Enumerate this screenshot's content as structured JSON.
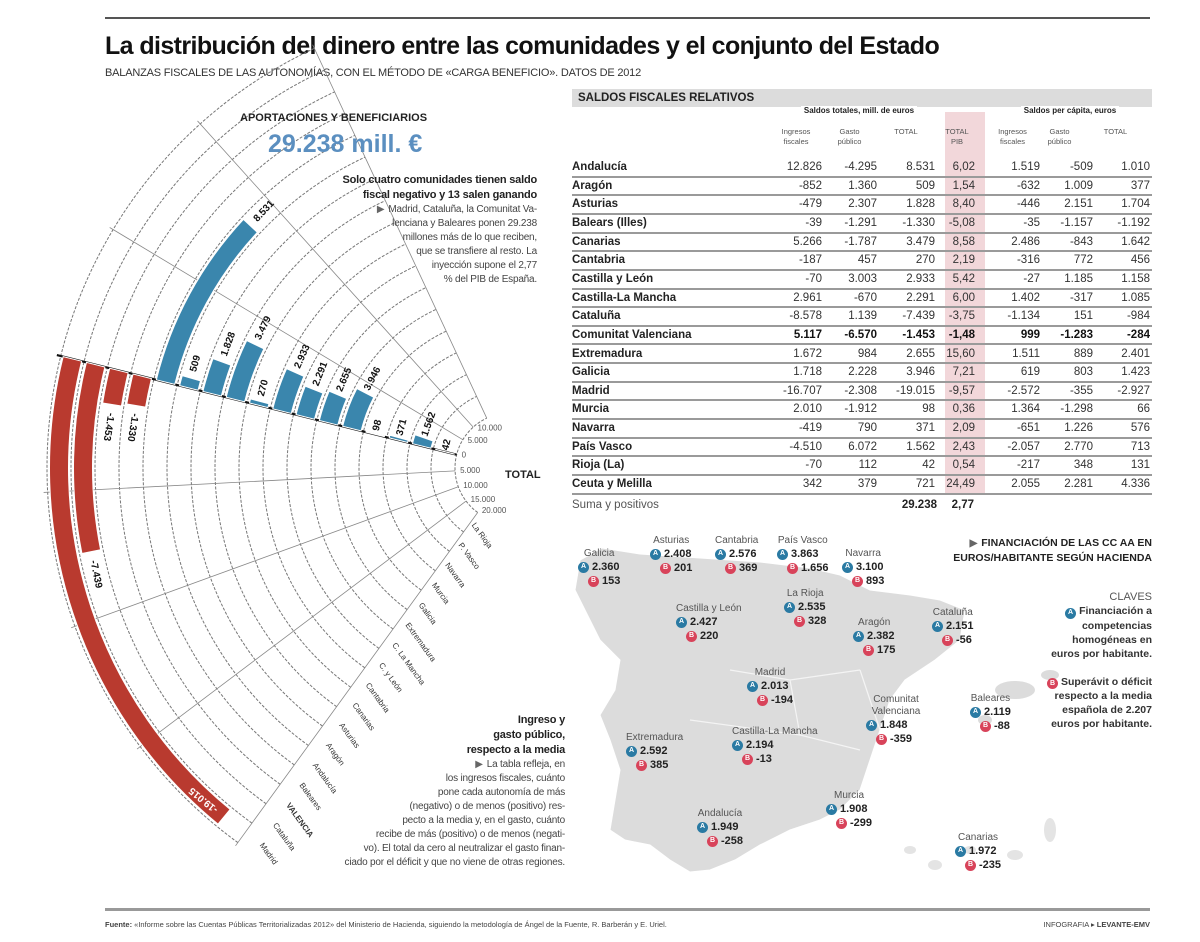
{
  "header": {
    "title": "La distribución del dinero entre las comunidades y el conjunto del Estado",
    "subtitle": "BALANZAS FISCALES DE LAS AUTONOMÍAS, CON EL MÉTODO DE «CARGA BENEFICIO». DATOS DE 2012"
  },
  "fan_section": {
    "title": "APORTACIONES Y BENEFICIARIOS",
    "big_number": "29.238 mill. €",
    "note1_heading": [
      "Solo cuatro comunidades tienen saldo",
      "fiscal negativo y 13 salen ganando"
    ],
    "note1_lines": [
      "Madrid, Cataluña, la Comunitat Va-",
      "lenciana y Baleares ponen 29.238",
      "millones más de lo que reciben,",
      "que se transfiere al resto. La",
      "inyección supone el 2,77",
      "% del PIB de España."
    ],
    "note2_heading": [
      "Ingreso y",
      "gasto público,",
      "respecto a la media"
    ],
    "note2_lines": [
      "La tabla refleja, en",
      "los ingresos fiscales, cuánto",
      "pone cada autonomía de más",
      "(negativo) o de menos (positivo) res-",
      "pecto a la media y, en el gasto, cuánto",
      "recibe de más (positivo) o de menos (negati-",
      "vo). El total da cero al neutralizar el gasto finan-",
      "ciado por el déficit y que no viene de otras regiones."
    ]
  },
  "chart_data": {
    "type": "bar",
    "layout": "radial",
    "axis_label": "TOTAL",
    "tick_labels": [
      "10.000",
      "5.000",
      "0",
      "5.000",
      "10.000",
      "15.000",
      "20.000"
    ],
    "tick_values": [
      10000,
      5000,
      0,
      -5000,
      -10000,
      -15000,
      -20000
    ],
    "range": [
      -20000,
      15000
    ],
    "categories": [
      "La Rioja",
      "P. Vasco",
      "Navarra",
      "Murcia",
      "Galicia",
      "Extremadura",
      "C. La Mancha",
      "C. y León",
      "Cantabria",
      "Canarias",
      "Asturias",
      "Aragón",
      "Andalucía",
      "Baleares",
      "VALENCIA",
      "Cataluña",
      "Madrid"
    ],
    "values": [
      42,
      1562,
      371,
      98,
      3946,
      2655,
      2291,
      2933,
      270,
      3479,
      1828,
      509,
      8531,
      -1330,
      -1453,
      -7439,
      -19015
    ],
    "value_labels": [
      "42",
      "1.562",
      "371",
      "98",
      "3.946",
      "2.655",
      "2.291",
      "2.933",
      "270",
      "3.479",
      "1.828",
      "509",
      "8.531",
      "-1.330",
      "-1.453",
      "-7.439",
      "-19.015"
    ],
    "colors": {
      "positive": "#3a86ad",
      "negative": "#b93a2f"
    }
  },
  "table": {
    "title": "SALDOS FISCALES RELATIVOS",
    "group_totales": "Saldos totales, mill. de euros",
    "group_percapita": "Saldos per cápita, euros",
    "columns": [
      [
        "Ingresos",
        "fiscales"
      ],
      [
        "Gasto",
        "público"
      ],
      [
        "TOTAL",
        ""
      ],
      [
        "TOTAL",
        "PIB"
      ],
      [
        "Ingresos",
        "fiscales"
      ],
      [
        "Gasto",
        "público"
      ],
      [
        "TOTAL",
        ""
      ]
    ],
    "rows": [
      {
        "name": "Andalucía",
        "values": [
          "12.826",
          "-4.295",
          "8.531",
          "6,02",
          "1.519",
          "-509",
          "1.010"
        ]
      },
      {
        "name": "Aragón",
        "values": [
          "-852",
          "1.360",
          "509",
          "1,54",
          "-632",
          "1.009",
          "377"
        ]
      },
      {
        "name": "Asturias",
        "values": [
          "-479",
          "2.307",
          "1.828",
          "8,40",
          "-446",
          "2.151",
          "1.704"
        ]
      },
      {
        "name": "Balears (Illes)",
        "values": [
          "-39",
          "-1.291",
          "-1.330",
          "-5,08",
          "-35",
          "-1.157",
          "-1.192"
        ]
      },
      {
        "name": "Canarias",
        "values": [
          "5.266",
          "-1.787",
          "3.479",
          "8,58",
          "2.486",
          "-843",
          "1.642"
        ]
      },
      {
        "name": "Cantabria",
        "values": [
          "-187",
          "457",
          "270",
          "2,19",
          "-316",
          "772",
          "456"
        ]
      },
      {
        "name": "Castilla y León",
        "values": [
          "-70",
          "3.003",
          "2.933",
          "5,42",
          "-27",
          "1.185",
          "1.158"
        ]
      },
      {
        "name": "Castilla-La Mancha",
        "values": [
          "2.961",
          "-670",
          "2.291",
          "6,00",
          "1.402",
          "-317",
          "1.085"
        ]
      },
      {
        "name": "Cataluña",
        "values": [
          "-8.578",
          "1.139",
          "-7.439",
          "-3,75",
          "-1.134",
          "151",
          "-984"
        ]
      },
      {
        "name": "Comunitat Valenciana",
        "bold": true,
        "values": [
          "5.117",
          "-6.570",
          "-1.453",
          "-1,48",
          "999",
          "-1.283",
          "-284"
        ]
      },
      {
        "name": "Extremadura",
        "values": [
          "1.672",
          "984",
          "2.655",
          "15,60",
          "1.511",
          "889",
          "2.401"
        ]
      },
      {
        "name": "Galicia",
        "values": [
          "1.718",
          "2.228",
          "3.946",
          "7,21",
          "619",
          "803",
          "1.423"
        ]
      },
      {
        "name": "Madrid",
        "values": [
          "-16.707",
          "-2.308",
          "-19.015",
          "-9,57",
          "-2.572",
          "-355",
          "-2.927"
        ]
      },
      {
        "name": "Murcia",
        "values": [
          "2.010",
          "-1.912",
          "98",
          "0,36",
          "1.364",
          "-1.298",
          "66"
        ]
      },
      {
        "name": "Navarra",
        "values": [
          "-419",
          "790",
          "371",
          "2,09",
          "-651",
          "1.226",
          "576"
        ]
      },
      {
        "name": "País Vasco",
        "values": [
          "-4.510",
          "6.072",
          "1.562",
          "2,43",
          "-2.057",
          "2.770",
          "713"
        ]
      },
      {
        "name": "Rioja (La)",
        "values": [
          "-70",
          "112",
          "42",
          "0,54",
          "-217",
          "348",
          "131"
        ]
      },
      {
        "name": "Ceuta y Melilla",
        "values": [
          "342",
          "379",
          "721",
          "24,49",
          "2.055",
          "2.281",
          "4.336"
        ]
      }
    ],
    "summary": {
      "label": "Suma y positivos",
      "total": "29.238",
      "pib": "2,77"
    }
  },
  "map": {
    "title": [
      "FINANCIACIÓN DE LAS CC AA EN",
      "EUROS/HABITANTE SEGÚN HACIENDA"
    ],
    "badge_a": "A",
    "badge_b": "B",
    "regions": [
      {
        "name": "Galicia",
        "a": "2.360",
        "b": "153"
      },
      {
        "name": "Asturias",
        "a": "2.408",
        "b": "201"
      },
      {
        "name": "Cantabria",
        "a": "2.576",
        "b": "369"
      },
      {
        "name": "País Vasco",
        "a": "3.863",
        "b": "1.656"
      },
      {
        "name": "Navarra",
        "a": "3.100",
        "b": "893"
      },
      {
        "name": "Castilla y León",
        "a": "2.427",
        "b": "220"
      },
      {
        "name": "La Rioja",
        "a": "2.535",
        "b": "328"
      },
      {
        "name": "Aragón",
        "a": "2.382",
        "b": "175"
      },
      {
        "name": "Cataluña",
        "a": "2.151",
        "b": "-56"
      },
      {
        "name": "Madrid",
        "a": "2.013",
        "b": "-194"
      },
      {
        "name": "Comunitat Valenciana",
        "a": "1.848",
        "b": "-359"
      },
      {
        "name": "Baleares",
        "a": "2.119",
        "b": "-88"
      },
      {
        "name": "Extremadura",
        "a": "2.592",
        "b": "385"
      },
      {
        "name": "Castilla-La Mancha",
        "a": "2.194",
        "b": "-13"
      },
      {
        "name": "Murcia",
        "a": "1.908",
        "b": "-299"
      },
      {
        "name": "Andalucía",
        "a": "1.949",
        "b": "-258"
      },
      {
        "name": "Canarias",
        "a": "1.972",
        "b": "-235"
      }
    ],
    "colors": {
      "a": "#2a7aa3",
      "b": "#d8435a",
      "land": "#dcdcdc"
    }
  },
  "legend": {
    "title": "CLAVES",
    "a_text": "Financiación a competencias homogéneas en euros por habitante.",
    "b_text": "Superávit o déficit respecto a la media española de 2.207 euros por habitante."
  },
  "footer": {
    "source_label": "Fuente:",
    "source_text": " «Informe sobre las Cuentas Públicas Territorializadas 2012» del Ministerio de Hacienda, siguiendo la metodología de Ángel de la Fuente, R. Barberán y E. Uriel.",
    "credit_prefix": "INFOGRAFIA ▸ ",
    "credit_brand": "LEVANTE-EMV"
  }
}
